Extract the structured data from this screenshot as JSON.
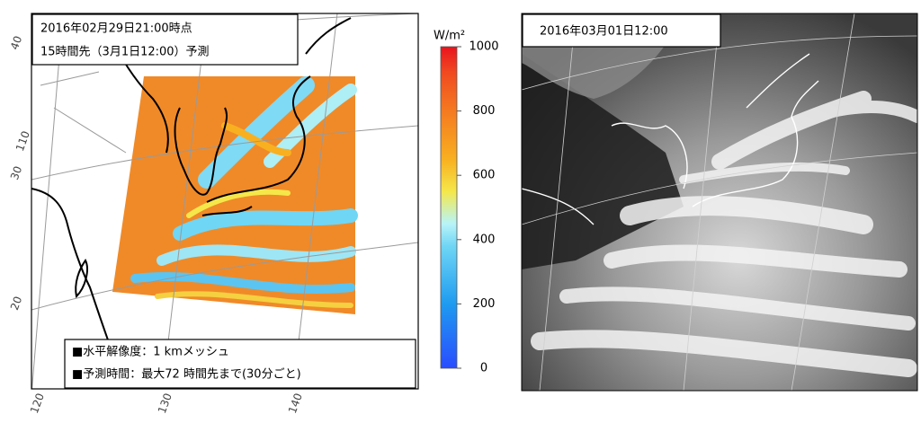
{
  "left_panel": {
    "title_lines": [
      "2016年02月29日21:00時点",
      "15時間先（3月1日12:00）予測"
    ],
    "info_lines": [
      "■水平解像度：1 kmメッシュ",
      "■予測時間：最大72 時間先まで(30分ごと)"
    ],
    "lat_labels": [
      "40",
      "30",
      "20"
    ],
    "lon_labels": [
      "110",
      "120",
      "130",
      "140"
    ]
  },
  "colorbar": {
    "unit": "W/m²",
    "lim": [
      0,
      1000
    ],
    "ticks": [
      0,
      200,
      400,
      600,
      800,
      1000
    ]
  },
  "right_panel": {
    "title": "2016年03月01日12:00"
  }
}
